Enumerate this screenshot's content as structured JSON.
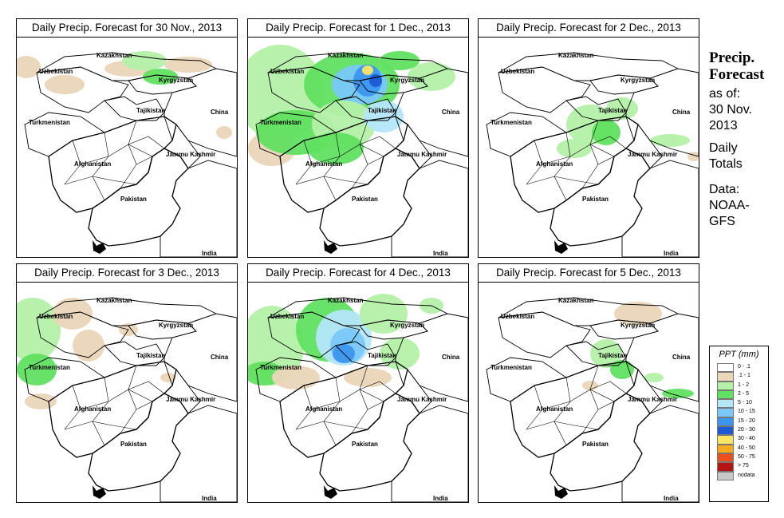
{
  "panels": [
    {
      "title": "Daily Precip. Forecast for  30 Nov., 2013",
      "day_index": 0
    },
    {
      "title": "Daily Precip. Forecast for  1 Dec., 2013",
      "day_index": 1
    },
    {
      "title": "Daily Precip. Forecast for  2 Dec., 2013",
      "day_index": 2
    },
    {
      "title": "Daily Precip. Forecast for  3 Dec., 2013",
      "day_index": 3
    },
    {
      "title": "Daily Precip. Forecast for  4 Dec., 2013",
      "day_index": 4
    },
    {
      "title": "Daily Precip. Forecast for  5 Dec., 2013",
      "day_index": 5
    }
  ],
  "map_labels": {
    "kazakhstan": "Kazakhstan",
    "uzbekistan": "Uzbekistan",
    "kyrgyzstan": "Kyrgyzstan",
    "tajikistan": "Tajikistan",
    "china": "China",
    "turkmenistan": "Turkmenistan",
    "afghanistan": "Afghanistan",
    "jammu_kashmir": "Jammu Kashmir",
    "pakistan": "Pakistan",
    "india": "India"
  },
  "sidebar": {
    "title_line1": "Precip.",
    "title_line2": "Forecast",
    "asof_line1": "as of:",
    "asof_line2": "30 Nov.",
    "asof_line3": "2013",
    "totals_line1": "Daily",
    "totals_line2": "Totals",
    "source_line1": "Data:",
    "source_line2": "NOAA-",
    "source_line3": "GFS"
  },
  "legend": {
    "title": "PPT (mm)",
    "items": [
      {
        "label": "0 - .1",
        "color": "#ffffff"
      },
      {
        "label": ".1 - 1",
        "color": "#ead6b8"
      },
      {
        "label": "1 - 2",
        "color": "#b4f0a8"
      },
      {
        "label": "2 - 5",
        "color": "#60e060"
      },
      {
        "label": "5 - 10",
        "color": "#b4e6fa"
      },
      {
        "label": "10 - 15",
        "color": "#7ac8fa"
      },
      {
        "label": "15 - 20",
        "color": "#3c96f0"
      },
      {
        "label": "20 - 30",
        "color": "#1e5ad2"
      },
      {
        "label": "30 - 40",
        "color": "#fae664"
      },
      {
        "label": "40 - 50",
        "color": "#faaa1e"
      },
      {
        "label": "50 - 75",
        "color": "#eb501e"
      },
      {
        "label": "> 75",
        "color": "#b41414"
      },
      {
        "label": "nodata",
        "color": "#c8c8c8"
      }
    ]
  }
}
